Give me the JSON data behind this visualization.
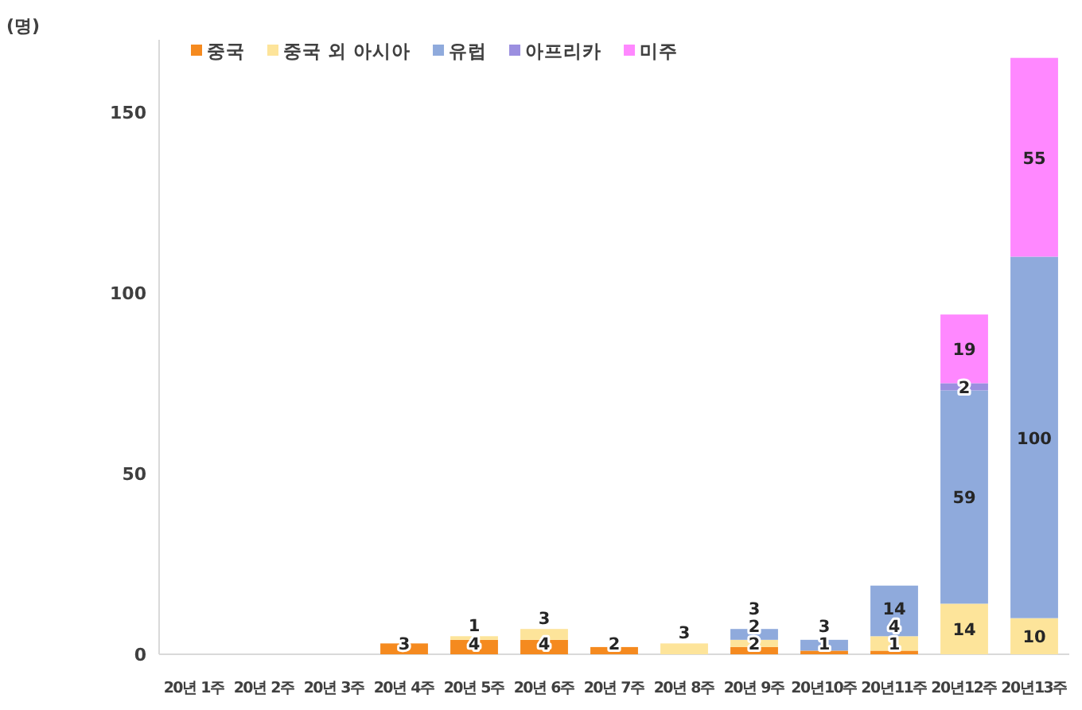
{
  "chart_data": {
    "type": "bar",
    "stacked": true,
    "ylabel": "(명)",
    "categories": [
      "20년 1주",
      "20년 2주",
      "20년 3주",
      "20년 4주",
      "20년 5주",
      "20년 6주",
      "20년 7주",
      "20년 8주",
      "20년 9주",
      "20년10주",
      "20년11주",
      "20년12주",
      "20년13주"
    ],
    "series": [
      {
        "name": "중국",
        "color": "#f58a1f",
        "values": [
          null,
          null,
          null,
          3,
          4,
          4,
          2,
          null,
          2,
          1,
          1,
          null,
          null
        ]
      },
      {
        "name": "중국 외 아시아",
        "color": "#fde49a",
        "values": [
          null,
          null,
          null,
          null,
          1,
          3,
          null,
          3,
          2,
          null,
          4,
          14,
          10
        ]
      },
      {
        "name": "유럽",
        "color": "#8faadc",
        "values": [
          null,
          null,
          null,
          null,
          null,
          null,
          null,
          null,
          3,
          3,
          14,
          59,
          100
        ]
      },
      {
        "name": "아프리카",
        "color": "#9b8fe0",
        "values": [
          null,
          null,
          null,
          null,
          null,
          null,
          null,
          null,
          null,
          null,
          null,
          2,
          null
        ]
      },
      {
        "name": "미주",
        "color": "#ff88ff",
        "values": [
          null,
          null,
          null,
          null,
          null,
          null,
          null,
          null,
          null,
          null,
          null,
          19,
          55
        ]
      }
    ],
    "ylim": [
      0,
      170
    ],
    "yticks": [
      0,
      50,
      100,
      150
    ],
    "grid": false,
    "legend": "top left",
    "data_labels": true
  }
}
